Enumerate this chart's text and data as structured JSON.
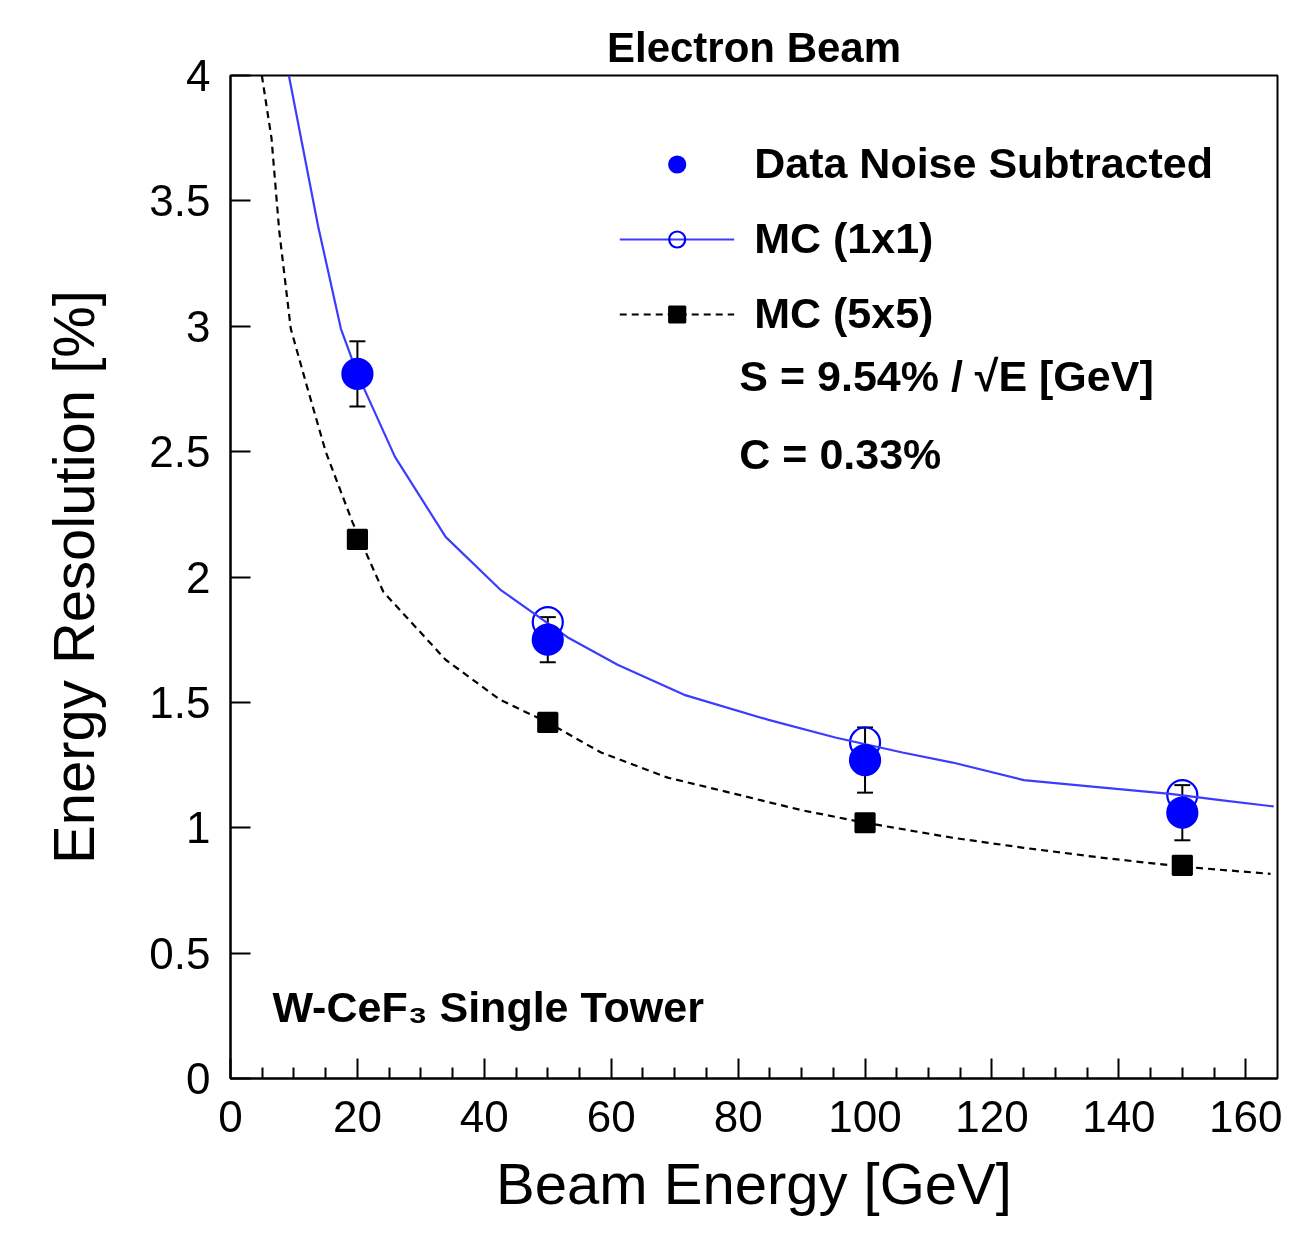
{
  "chart_data": {
    "type": "scatter",
    "title": "Electron Beam",
    "xlabel": "Beam Energy [GeV]",
    "ylabel": "Energy Resolution [%]",
    "annotations": [
      "S =  9.54% / √E [GeV]",
      "C =  0.33%",
      "W-CeF₃ Single Tower"
    ],
    "xlim": [
      0,
      165
    ],
    "ylim": [
      0,
      4
    ],
    "xticks": [
      0,
      20,
      40,
      60,
      80,
      100,
      120,
      140,
      160
    ],
    "yticks": [
      0,
      0.5,
      1,
      1.5,
      2,
      2.5,
      3,
      3.5,
      4
    ],
    "legend": "top right",
    "x": [
      20,
      50,
      100,
      150
    ],
    "series": [
      {
        "name": "Data Noise Subtracted",
        "color": "#0000ff",
        "marker": "circle",
        "values": [
          2.81,
          1.75,
          1.27,
          1.06
        ],
        "errors": [
          0.13,
          0.09,
          0.13,
          0.11
        ]
      },
      {
        "name": "MC (1x1)",
        "color": "#0000ff",
        "marker": "circle",
        "values": [
          null,
          1.82,
          1.34,
          1.13
        ]
      },
      {
        "type": "line",
        "color": "#3c3cff",
        "line_style": "solid",
        "x": [
          9.2,
          13.8,
          17.4,
          20,
          25.9,
          33.9,
          42.5,
          50.3,
          53.1,
          61.0,
          71.5,
          84.8,
          95.3,
          105.9,
          113.8,
          125,
          137.5,
          148.1,
          156.0,
          164.4
        ],
        "values": [
          4.0,
          3.4,
          2.99,
          2.81,
          2.48,
          2.16,
          1.95,
          1.81,
          1.76,
          1.65,
          1.53,
          1.43,
          1.36,
          1.3,
          1.26,
          1.19,
          1.16,
          1.135,
          1.11,
          1.085
        ]
      },
      {
        "name": "MC (5x5)",
        "color": "#000000",
        "marker": "square",
        "values": [
          2.15,
          1.42,
          1.02,
          0.85
        ]
      },
      {
        "type": "line",
        "color": "#000000",
        "line_style": "dashed",
        "x": [
          4.94,
          6.46,
          7.68,
          9.5,
          11.94,
          15.0,
          19.2,
          24.1,
          33.9,
          42.5,
          50,
          58.4,
          68.9,
          79.5,
          90.0,
          100,
          113.8,
          125,
          137.5,
          150,
          163.9
        ],
        "values": [
          4.0,
          3.75,
          3.38,
          2.99,
          2.77,
          2.5,
          2.22,
          1.94,
          1.67,
          1.51,
          1.42,
          1.3,
          1.2,
          1.135,
          1.07,
          1.02,
          0.96,
          0.92,
          0.88,
          0.845,
          0.816
        ]
      }
    ]
  }
}
